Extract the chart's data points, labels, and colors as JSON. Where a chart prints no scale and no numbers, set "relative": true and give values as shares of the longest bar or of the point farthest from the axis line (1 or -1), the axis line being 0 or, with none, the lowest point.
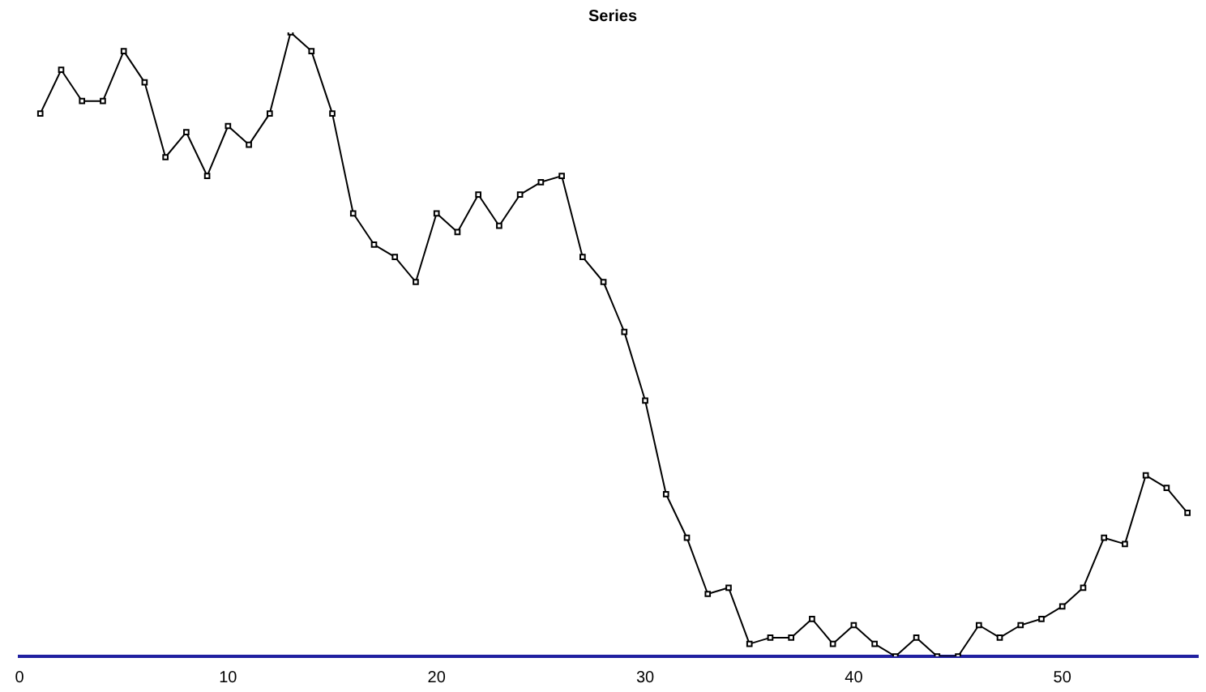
{
  "chart_data": {
    "type": "line",
    "title": "Series",
    "relative": true,
    "x": [
      1,
      2,
      3,
      4,
      5,
      6,
      7,
      8,
      9,
      10,
      11,
      12,
      13,
      14,
      15,
      16,
      17,
      18,
      19,
      20,
      21,
      22,
      23,
      24,
      25,
      26,
      27,
      28,
      29,
      30,
      31,
      32,
      33,
      34,
      35,
      36,
      37,
      38,
      39,
      40,
      41,
      42,
      43,
      44,
      45,
      46,
      47,
      48,
      49,
      50,
      51,
      52,
      53,
      54,
      55,
      56
    ],
    "values": [
      0.87,
      0.94,
      0.89,
      0.89,
      0.97,
      0.92,
      0.8,
      0.84,
      0.77,
      0.85,
      0.82,
      0.87,
      1,
      0.97,
      0.87,
      0.71,
      0.66,
      0.64,
      0.6,
      0.71,
      0.68,
      0.74,
      0.69,
      0.74,
      0.76,
      0.77,
      0.64,
      0.6,
      0.52,
      0.41,
      0.26,
      0.19,
      0.1,
      0.11,
      0.02,
      0.03,
      0.03,
      0.06,
      0.02,
      0.05,
      0.02,
      0,
      0.03,
      0,
      0,
      0.05,
      0.03,
      0.05,
      0.06,
      0.08,
      0.11,
      0.19,
      0.18,
      0.29,
      0.27,
      0.23
    ],
    "color": "#000000",
    "marker": "square",
    "line_style": "solid",
    "grid": false,
    "legend": false,
    "xlim": [
      0,
      56.5
    ],
    "xticks": [
      0,
      10,
      20,
      30,
      40,
      50
    ]
  }
}
